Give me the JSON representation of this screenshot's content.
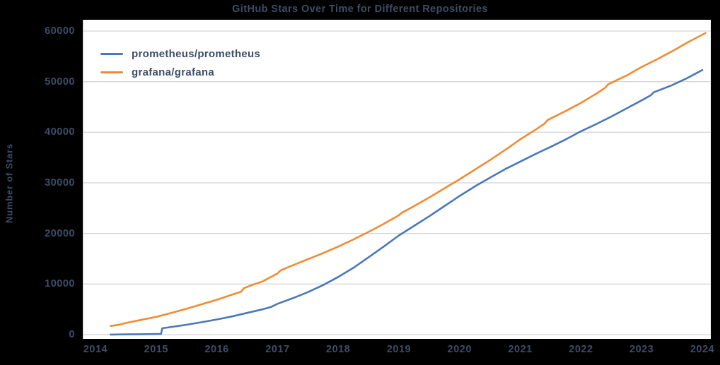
{
  "colors": {
    "background": "#000000",
    "plot_background": "#ffffff",
    "text": "#3e4d68",
    "grid": "#c8c8c8",
    "blue": "#4a78b8",
    "orange": "#f08b33"
  },
  "chart_data": {
    "type": "line",
    "title": "GitHub Stars Over Time for Different Repositories",
    "xlabel": "",
    "ylabel": "Number of Stars",
    "xlim": [
      2014,
      2024
    ],
    "ylim": [
      0,
      60000
    ],
    "xticks": [
      2014,
      2015,
      2016,
      2017,
      2018,
      2019,
      2020,
      2021,
      2022,
      2023,
      2024
    ],
    "yticks": [
      0,
      10000,
      20000,
      30000,
      40000,
      50000,
      60000
    ],
    "grid": "horizontal",
    "legend_position": "upper-left-inside",
    "series": [
      {
        "name": "prometheus/prometheus",
        "color": "#4a78b8",
        "points": [
          [
            2014.25,
            20
          ],
          [
            2014.5,
            50
          ],
          [
            2014.75,
            90
          ],
          [
            2015.0,
            130
          ],
          [
            2015.08,
            160
          ],
          [
            2015.1,
            1250
          ],
          [
            2015.3,
            1600
          ],
          [
            2015.5,
            1950
          ],
          [
            2015.75,
            2450
          ],
          [
            2016.0,
            3000
          ],
          [
            2016.25,
            3600
          ],
          [
            2016.5,
            4300
          ],
          [
            2016.75,
            5000
          ],
          [
            2016.9,
            5500
          ],
          [
            2017.0,
            6100
          ],
          [
            2017.25,
            7200
          ],
          [
            2017.5,
            8400
          ],
          [
            2017.75,
            9800
          ],
          [
            2018.0,
            11400
          ],
          [
            2018.25,
            13200
          ],
          [
            2018.5,
            15300
          ],
          [
            2018.75,
            17400
          ],
          [
            2019.0,
            19600
          ],
          [
            2019.25,
            21500
          ],
          [
            2019.5,
            23400
          ],
          [
            2019.75,
            25400
          ],
          [
            2020.0,
            27400
          ],
          [
            2020.2,
            28900
          ],
          [
            2020.25,
            29300
          ],
          [
            2020.5,
            31000
          ],
          [
            2020.75,
            32700
          ],
          [
            2021.0,
            34200
          ],
          [
            2021.25,
            35700
          ],
          [
            2021.5,
            37100
          ],
          [
            2021.75,
            38600
          ],
          [
            2022.0,
            40200
          ],
          [
            2022.25,
            41600
          ],
          [
            2022.5,
            43100
          ],
          [
            2022.75,
            44700
          ],
          [
            2023.0,
            46300
          ],
          [
            2023.15,
            47300
          ],
          [
            2023.2,
            47900
          ],
          [
            2023.5,
            49300
          ],
          [
            2023.75,
            50700
          ],
          [
            2024.0,
            52300
          ]
        ]
      },
      {
        "name": "grafana/grafana",
        "color": "#f08b33",
        "points": [
          [
            2014.25,
            1700
          ],
          [
            2014.4,
            2000
          ],
          [
            2014.5,
            2300
          ],
          [
            2014.75,
            2900
          ],
          [
            2015.0,
            3500
          ],
          [
            2015.25,
            4300
          ],
          [
            2015.5,
            5100
          ],
          [
            2015.75,
            6000
          ],
          [
            2016.0,
            6900
          ],
          [
            2016.2,
            7700
          ],
          [
            2016.4,
            8500
          ],
          [
            2016.45,
            9200
          ],
          [
            2016.6,
            9900
          ],
          [
            2016.75,
            10500
          ],
          [
            2017.0,
            12100
          ],
          [
            2017.05,
            12700
          ],
          [
            2017.25,
            13700
          ],
          [
            2017.5,
            14900
          ],
          [
            2017.75,
            16100
          ],
          [
            2018.0,
            17400
          ],
          [
            2018.25,
            18800
          ],
          [
            2018.5,
            20300
          ],
          [
            2018.75,
            21900
          ],
          [
            2019.0,
            23600
          ],
          [
            2019.05,
            24100
          ],
          [
            2019.25,
            25400
          ],
          [
            2019.5,
            27100
          ],
          [
            2019.75,
            28900
          ],
          [
            2020.0,
            30700
          ],
          [
            2020.25,
            32600
          ],
          [
            2020.5,
            34500
          ],
          [
            2020.75,
            36500
          ],
          [
            2021.0,
            38600
          ],
          [
            2021.25,
            40500
          ],
          [
            2021.4,
            41700
          ],
          [
            2021.45,
            42400
          ],
          [
            2021.75,
            44200
          ],
          [
            2022.0,
            45800
          ],
          [
            2022.25,
            47600
          ],
          [
            2022.4,
            48800
          ],
          [
            2022.45,
            49500
          ],
          [
            2022.75,
            51200
          ],
          [
            2023.0,
            52900
          ],
          [
            2023.25,
            54400
          ],
          [
            2023.5,
            56000
          ],
          [
            2023.75,
            57700
          ],
          [
            2024.05,
            59600
          ]
        ]
      }
    ]
  }
}
